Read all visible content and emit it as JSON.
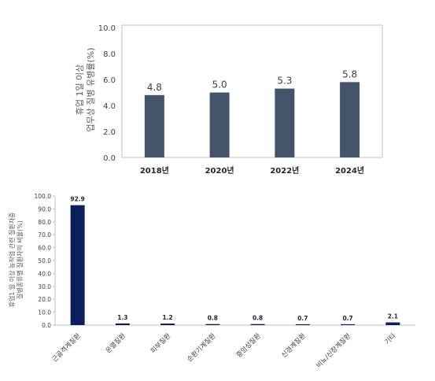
{
  "chart_data": [
    {
      "type": "bar",
      "ylabel_lines": [
        "휴업 1일 이상",
        "업무상 질병 유병률(%)"
      ],
      "categories": [
        "2018년",
        "2020년",
        "2022년",
        "2024년"
      ],
      "values": [
        4.8,
        5.0,
        5.3,
        5.8
      ],
      "value_labels": [
        "4.8",
        "5.0",
        "5.3",
        "5.8"
      ],
      "yticks": [
        "0.0",
        "2.0",
        "4.0",
        "6.0",
        "8.0",
        "10.0"
      ],
      "ylim": [
        0,
        10
      ],
      "grid": false,
      "bar_color": "#44546a"
    },
    {
      "type": "bar",
      "ylabel_lines": [
        "휴업1 일 이상 농작업 관련 질환자중",
        "질병종류별 질환자의 비율(%)"
      ],
      "categories": [
        "근골격계질환",
        "온열질환",
        "피부질환",
        "순환기계질환",
        "중앙성질환",
        "신경계질환",
        "비뇨/신장계질환",
        "기타"
      ],
      "values": [
        92.9,
        1.3,
        1.2,
        0.8,
        0.8,
        0.7,
        0.7,
        2.1
      ],
      "value_labels": [
        "92.9",
        "1.3",
        "1.2",
        "0.8",
        "0.8",
        "0.7",
        "0.7",
        "2.1"
      ],
      "yticks": [
        "0.0",
        "10.0",
        "20.0",
        "30.0",
        "40.0",
        "50.0",
        "60.0",
        "70.0",
        "80.0",
        "90.0",
        "100.0"
      ],
      "ylim": [
        0,
        100
      ],
      "grid": false,
      "bar_color": "#0b1f5c"
    }
  ]
}
